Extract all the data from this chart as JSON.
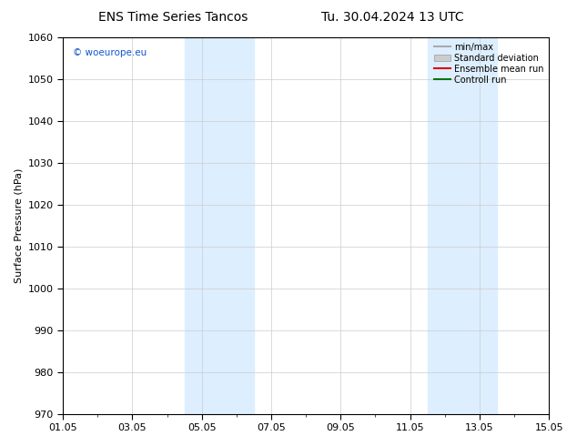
{
  "title": "ENS Time Series Tancos",
  "date_label": "Tu. 30.04.2024 13 UTC",
  "ylabel": "Surface Pressure (hPa)",
  "ylim": [
    970,
    1060
  ],
  "yticks": [
    970,
    980,
    990,
    1000,
    1010,
    1020,
    1030,
    1040,
    1050,
    1060
  ],
  "xtick_labels": [
    "01.05",
    "03.05",
    "05.05",
    "07.05",
    "09.05",
    "11.05",
    "13.05",
    "15.05"
  ],
  "xtick_positions": [
    0,
    2,
    4,
    6,
    8,
    10,
    12,
    14
  ],
  "xlim": [
    0,
    14
  ],
  "shaded_bands": [
    {
      "x_start": 3.5,
      "x_end": 5.5,
      "color": "#ddeeff"
    },
    {
      "x_start": 10.5,
      "x_end": 12.5,
      "color": "#ddeeff"
    }
  ],
  "watermark": "© woeurope.eu",
  "watermark_color": "#1155cc",
  "legend_items": [
    {
      "label": "min/max",
      "color": "#aaaaaa",
      "type": "line"
    },
    {
      "label": "Standard deviation",
      "color": "#cccccc",
      "type": "box"
    },
    {
      "label": "Ensemble mean run",
      "color": "#dd0000",
      "type": "line"
    },
    {
      "label": "Controll run",
      "color": "#007700",
      "type": "line"
    }
  ],
  "background_color": "#ffffff",
  "plot_bg_color": "#ffffff",
  "grid_color": "#cccccc",
  "title_fontsize": 10,
  "label_fontsize": 8,
  "tick_fontsize": 8
}
